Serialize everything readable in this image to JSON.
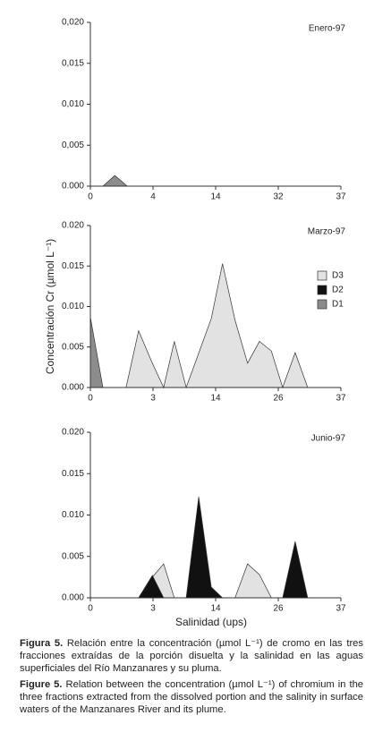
{
  "chart_data": [
    {
      "type": "area",
      "annotation": "Enero-97",
      "xlim": [
        0,
        40
      ],
      "xticks": [
        0,
        {
          "value": 10,
          "label": "4"
        },
        {
          "value": 20,
          "label": "14"
        },
        {
          "value": 30,
          "label": "32"
        },
        {
          "value": 40,
          "label": "37"
        }
      ],
      "ylim": [
        0,
        0.02
      ],
      "yticks": [
        {
          "value": 0,
          "label": "0.000"
        },
        {
          "value": 0.005,
          "label": "0,005"
        },
        {
          "value": 0.01,
          "label": "0,010"
        },
        {
          "value": 0.015,
          "label": "0,015"
        },
        {
          "value": 0.02,
          "label": "0,020"
        }
      ],
      "series": [
        {
          "color": "#8c8c8c",
          "x": [
            2,
            3.9,
            5.9
          ],
          "values": [
            0,
            0.0013,
            0
          ]
        }
      ]
    },
    {
      "type": "area",
      "annotation": "Marzo-97",
      "ylabel": "Concentración Cr (µmol L⁻¹)",
      "legend": "right",
      "xlim": [
        0,
        40
      ],
      "xticks": [
        0,
        {
          "value": 10,
          "label": "3"
        },
        {
          "value": 20,
          "label": "14"
        },
        {
          "value": 30,
          "label": "26"
        },
        {
          "value": 40,
          "label": "37"
        }
      ],
      "ylim": [
        0,
        0.02
      ],
      "yticks": [
        {
          "value": 0,
          "label": "0.000"
        },
        {
          "value": 0.005,
          "label": "0.005"
        },
        {
          "value": 0.01,
          "label": "0.010"
        },
        {
          "value": 0.015,
          "label": "0.015"
        },
        {
          "value": 0.02,
          "label": "0.020"
        }
      ],
      "series": [
        {
          "name": "D3",
          "color": "#e2e2e2",
          "x": [
            5.7,
            7.7,
            9.9,
            11.7,
            13.4,
            15.3,
            19.3,
            21.1,
            23.1,
            25.1,
            27,
            28.9,
            30.7,
            32.7,
            34.7
          ],
          "values": [
            0,
            0.007,
            0.003,
            0,
            0.0057,
            0,
            0.0085,
            0.0153,
            0.0083,
            0.003,
            0.0057,
            0.0045,
            0,
            0.0043,
            0
          ]
        },
        {
          "name": "D2",
          "color": "#111111",
          "x": [],
          "values": []
        },
        {
          "name": "D1",
          "color": "#8c8c8c",
          "x": [
            0,
            0,
            2
          ],
          "values": [
            0,
            0.0087,
            0
          ]
        }
      ]
    },
    {
      "type": "area",
      "annotation": "Junio-97",
      "xlabel": "Salinidad (ups)",
      "xlim": [
        0,
        40
      ],
      "xticks": [
        0,
        {
          "value": 10,
          "label": "3"
        },
        {
          "value": 20,
          "label": "14"
        },
        {
          "value": 30,
          "label": "26"
        },
        {
          "value": 40,
          "label": "37"
        }
      ],
      "ylim": [
        0,
        0.02
      ],
      "yticks": [
        {
          "value": 0,
          "label": "0.000"
        },
        {
          "value": 0.005,
          "label": "0.005"
        },
        {
          "value": 0.01,
          "label": "0.010"
        },
        {
          "value": 0.015,
          "label": "0.015"
        },
        {
          "value": 0.02,
          "label": "0.020"
        }
      ],
      "series": [
        {
          "color": "#e2e2e2",
          "x": [
            7.7,
            9.9,
            11.7,
            13.4,
            null,
            23.1,
            25.1,
            27,
            28.9
          ],
          "values": [
            0,
            0.0025,
            0.0041,
            0,
            null,
            0,
            0.0041,
            0.0028,
            0
          ]
        },
        {
          "color": "#111111",
          "x": [
            7.7,
            9.9,
            11.7,
            null,
            15.3,
            17.3,
            19.3,
            21.1,
            null,
            30.7,
            32.7,
            34.7
          ],
          "values": [
            0,
            0.0027,
            0,
            null,
            0,
            0.0122,
            0.0013,
            0,
            null,
            0,
            0.0068,
            0
          ]
        }
      ]
    }
  ],
  "caption": {
    "es_label": "Figura 5.",
    "es_text": "Relación entre la concentración (µmol L⁻¹) de cromo en las tres fracciones extraídas de la porción disuelta y la salinidad en las aguas superficiales del Río Manzanares y su pluma.",
    "en_label": "Figure 5.",
    "en_text": "Relation between the concentration (µmol L⁻¹) of chromium in the three fractions extracted from the dissolved portion and the salinity in surface waters of the Manzanares River and its plume."
  }
}
